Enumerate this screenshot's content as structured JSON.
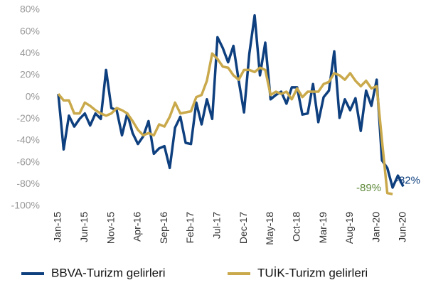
{
  "chart_data": {
    "type": "line",
    "categories": [
      "Jan-15",
      null,
      null,
      null,
      null,
      "Jun-15",
      null,
      null,
      null,
      null,
      "Nov-15",
      null,
      null,
      null,
      null,
      "Apr-16",
      null,
      null,
      null,
      null,
      "Sep-16",
      null,
      null,
      null,
      null,
      "Feb-17",
      null,
      null,
      null,
      null,
      "Jul-17",
      null,
      null,
      null,
      null,
      "Dec-17",
      null,
      null,
      null,
      null,
      "May-18",
      null,
      null,
      null,
      null,
      "Oct-18",
      null,
      null,
      null,
      null,
      "Mar-19",
      null,
      null,
      null,
      null,
      "Aug-19",
      null,
      null,
      null,
      null,
      "Jan-20",
      null,
      null,
      null,
      null,
      "Jun-20"
    ],
    "series": [
      {
        "name": "BBVA-Turizm gelirleri",
        "color": "#0e3f7e",
        "label_color": "#0e3f7e",
        "values": [
          3,
          -48,
          -17,
          -27,
          -20,
          -15,
          -26,
          -15,
          -20,
          25,
          -10,
          -12,
          -35,
          -15,
          -33,
          -43,
          -36,
          -22,
          -52,
          -47,
          -45,
          -65,
          -28,
          -18,
          -42,
          -43,
          -5,
          -25,
          -2,
          -20,
          55,
          45,
          32,
          47,
          15,
          -14,
          40,
          75,
          20,
          50,
          -2,
          2,
          5,
          -6,
          9,
          9,
          -16,
          -15,
          12,
          -23,
          0,
          6,
          42,
          -19,
          -2,
          -12,
          -1,
          -31,
          6,
          -8,
          16,
          -58,
          -65,
          -83,
          -72,
          -82
        ],
        "value_labels": [
          null,
          null,
          null,
          null,
          null,
          null,
          null,
          null,
          null,
          null,
          null,
          null,
          null,
          null,
          null,
          null,
          null,
          null,
          null,
          null,
          null,
          null,
          null,
          null,
          null,
          null,
          null,
          null,
          null,
          null,
          null,
          null,
          null,
          null,
          null,
          null,
          null,
          null,
          null,
          null,
          null,
          null,
          null,
          null,
          null,
          null,
          null,
          null,
          null,
          null,
          null,
          null,
          null,
          null,
          null,
          null,
          null,
          null,
          null,
          null,
          null,
          null,
          null,
          null,
          null,
          "-82%"
        ]
      },
      {
        "name": "TUİK-Turizm gelirleri",
        "color": "#c9a94b",
        "label_color": "#5f8a3a",
        "values": [
          3,
          -3,
          -3,
          -15,
          -15,
          -5,
          -8,
          -12,
          -15,
          -17,
          -15,
          -10,
          -12,
          -15,
          -22,
          -30,
          -35,
          -33,
          -35,
          -25,
          -27,
          -18,
          -5,
          -15,
          -14,
          -13,
          0,
          2,
          15,
          40,
          35,
          28,
          27,
          20,
          16,
          25,
          25,
          23,
          27,
          25,
          2,
          5,
          3,
          5,
          -2,
          8,
          0,
          5,
          5,
          5,
          12,
          14,
          22,
          20,
          16,
          22,
          15,
          10,
          15,
          8,
          10,
          -40,
          -88,
          -89,
          null,
          null
        ],
        "value_labels": [
          null,
          null,
          null,
          null,
          null,
          null,
          null,
          null,
          null,
          null,
          null,
          null,
          null,
          null,
          null,
          null,
          null,
          null,
          null,
          null,
          null,
          null,
          null,
          null,
          null,
          null,
          null,
          null,
          null,
          null,
          null,
          null,
          null,
          null,
          null,
          null,
          null,
          null,
          null,
          null,
          null,
          null,
          null,
          null,
          null,
          null,
          null,
          null,
          null,
          null,
          null,
          null,
          null,
          null,
          null,
          null,
          null,
          null,
          null,
          null,
          null,
          null,
          null,
          "-89%",
          null,
          null
        ]
      }
    ],
    "ylim": [
      -100,
      80
    ],
    "yticks": [
      {
        "value": -100,
        "label": "-100%"
      },
      {
        "value": -80,
        "label": "-80%"
      },
      {
        "value": -60,
        "label": "-60%"
      },
      {
        "value": -40,
        "label": "-40%"
      },
      {
        "value": -20,
        "label": "-20%"
      },
      {
        "value": 0,
        "label": "0%"
      },
      {
        "value": 20,
        "label": "20%"
      },
      {
        "value": 40,
        "label": "40%"
      },
      {
        "value": 60,
        "label": "60%"
      },
      {
        "value": 80,
        "label": "80%"
      }
    ],
    "grid": false,
    "legend": "bottom"
  }
}
